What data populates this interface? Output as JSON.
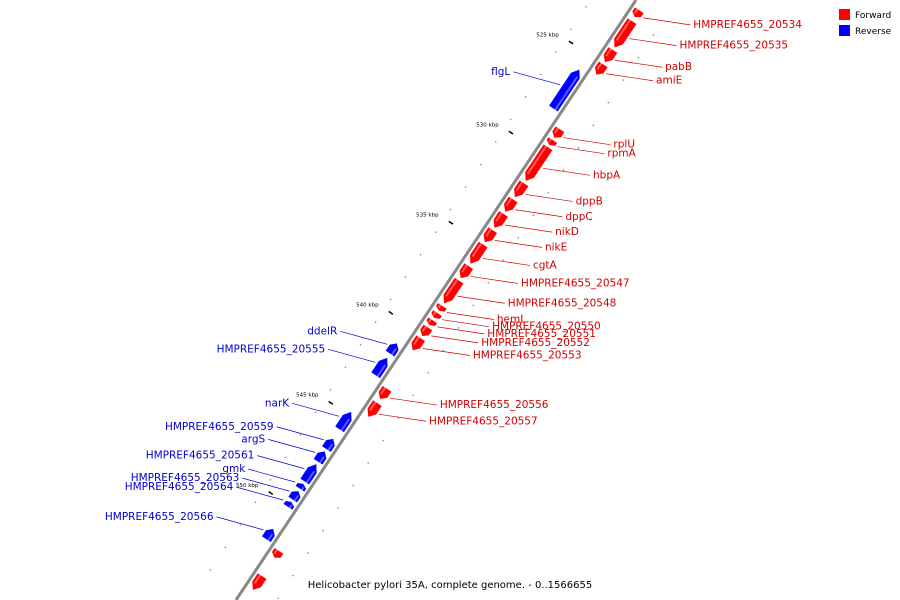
{
  "caption": "Helicobacter pylori 35A, complete genome. - 0..1566655",
  "legend": [
    {
      "label": "Forward",
      "color": "#ff0000"
    },
    {
      "label": "Reverse",
      "color": "#0000ff"
    }
  ],
  "colors": {
    "forward": "#ff0000",
    "reverse": "#0000ff",
    "forward_label": "#d00000",
    "reverse_label": "#0000cc",
    "backbone": "#888888"
  },
  "ticks": [
    {
      "label": "525 kbp",
      "pos": 525
    },
    {
      "label": "530 kbp",
      "pos": 530
    },
    {
      "label": "535 kbp",
      "pos": 535
    },
    {
      "label": "540 kbp",
      "pos": 540
    },
    {
      "label": "545 kbp",
      "pos": 545
    },
    {
      "label": "550 kbp",
      "pos": 550
    }
  ],
  "genes": [
    {
      "name": "HMPREF4655_20534",
      "strand": "forward",
      "start": 522.0,
      "end": 522.4
    },
    {
      "name": "HMPREF4655_20535",
      "strand": "forward",
      "start": 522.6,
      "end": 524.1
    },
    {
      "name": "pabB",
      "strand": "forward",
      "start": 524.2,
      "end": 524.9
    },
    {
      "name": "amiE",
      "strand": "forward",
      "start": 525.0,
      "end": 525.6
    },
    {
      "name": "flgL",
      "strand": "reverse",
      "start": 525.8,
      "end": 528.0
    },
    {
      "name": "rplU",
      "strand": "forward",
      "start": 528.6,
      "end": 529.1
    },
    {
      "name": "rpmA",
      "strand": "forward",
      "start": 529.2,
      "end": 529.5
    },
    {
      "name": "hbpA",
      "strand": "forward",
      "start": 529.6,
      "end": 531.5
    },
    {
      "name": "dppB",
      "strand": "forward",
      "start": 531.6,
      "end": 532.4
    },
    {
      "name": "dppC",
      "strand": "forward",
      "start": 532.5,
      "end": 533.2
    },
    {
      "name": "nikD",
      "strand": "forward",
      "start": 533.3,
      "end": 534.1
    },
    {
      "name": "nikE",
      "strand": "forward",
      "start": 534.2,
      "end": 534.9
    },
    {
      "name": "cgtA",
      "strand": "forward",
      "start": 535.0,
      "end": 536.1
    },
    {
      "name": "HMPREF4655_20547",
      "strand": "forward",
      "start": 536.2,
      "end": 536.9
    },
    {
      "name": "HMPREF4655_20548",
      "strand": "forward",
      "start": 537.0,
      "end": 538.3
    },
    {
      "name": "hemL",
      "strand": "forward",
      "start": 538.4,
      "end": 538.7
    },
    {
      "name": "HMPREF4655_20550",
      "strand": "forward",
      "start": 538.8,
      "end": 539.1
    },
    {
      "name": "HMPREF4655_20551",
      "strand": "forward",
      "start": 539.2,
      "end": 539.5
    },
    {
      "name": "HMPREF4655_20552",
      "strand": "forward",
      "start": 539.6,
      "end": 540.1
    },
    {
      "name": "HMPREF4655_20553",
      "strand": "forward",
      "start": 540.2,
      "end": 540.9
    },
    {
      "name": "ddelR",
      "strand": "reverse",
      "start": 541.0,
      "end": 541.6
    },
    {
      "name": "HMPREF4655_20555",
      "strand": "reverse",
      "start": 541.8,
      "end": 542.8
    },
    {
      "name": "HMPREF4655_20556",
      "strand": "forward",
      "start": 543.0,
      "end": 543.6
    },
    {
      "name": "HMPREF4655_20557",
      "strand": "forward",
      "start": 543.8,
      "end": 544.6
    },
    {
      "name": "narK",
      "strand": "reverse",
      "start": 544.8,
      "end": 545.8
    },
    {
      "name": "HMPREF4655_20559",
      "strand": "reverse",
      "start": 546.3,
      "end": 546.9
    },
    {
      "name": "argS",
      "strand": "reverse",
      "start": 547.0,
      "end": 547.6
    },
    {
      "name": "HMPREF4655_20561",
      "strand": "reverse",
      "start": 547.7,
      "end": 548.7
    },
    {
      "name": "gmk",
      "strand": "reverse",
      "start": 548.8,
      "end": 549.1
    },
    {
      "name": "HMPREF4655_20563",
      "strand": "reverse",
      "start": 549.2,
      "end": 549.7
    },
    {
      "name": "HMPREF4655_20564",
      "strand": "reverse",
      "start": 549.8,
      "end": 550.1
    },
    {
      "name": "HMPREF4655_20566",
      "strand": "reverse",
      "start": 551.3,
      "end": 551.9
    },
    {
      "name": "",
      "strand": "forward",
      "start": 552.0,
      "end": 552.4
    },
    {
      "name": "",
      "strand": "forward",
      "start": 553.4,
      "end": 554.2
    }
  ]
}
